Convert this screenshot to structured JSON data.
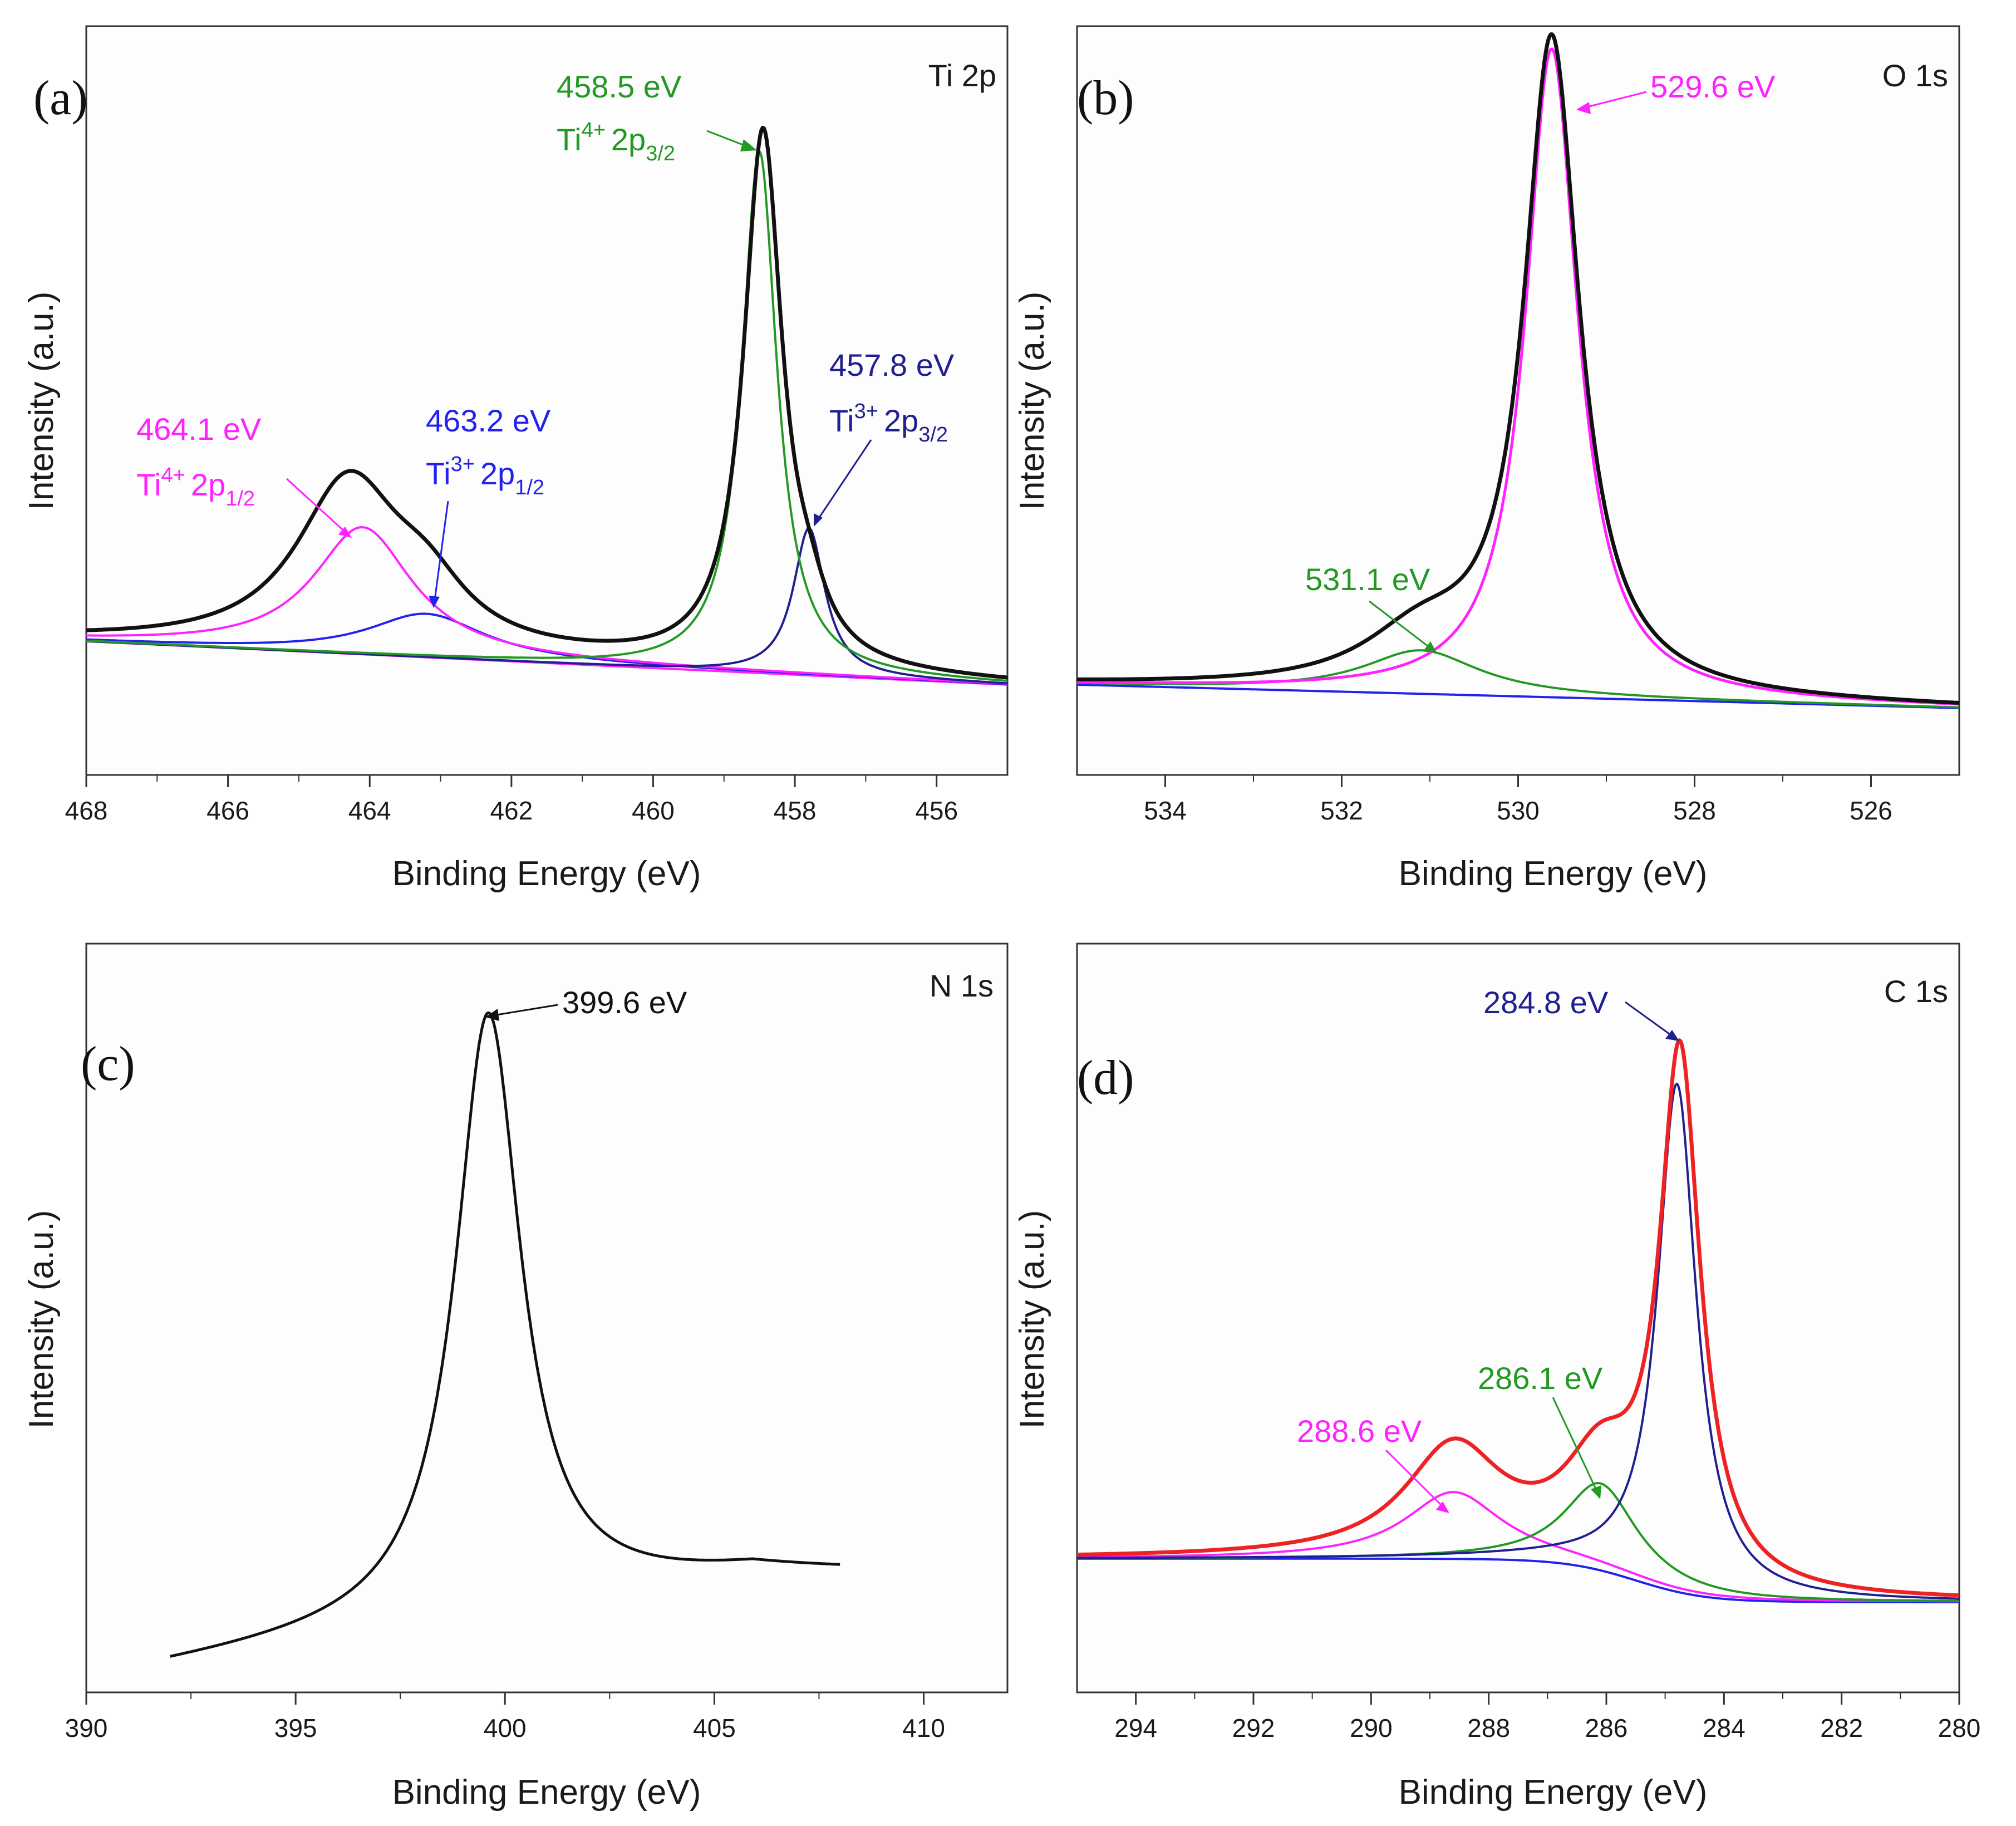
{
  "figure": {
    "colors": {
      "black": "#111111",
      "magenta": "#ff22ff",
      "green": "#229922",
      "blue": "#2222ee",
      "navy": "#1f1f8f",
      "red": "#ee2222"
    }
  },
  "chart_data": [
    {
      "type": "line",
      "panel": "(a)",
      "element_label": "Ti 2p",
      "xlabel": "Binding Energy (eV)",
      "ylabel": "Intensity (a.u.)",
      "xlim": [
        468,
        455
      ],
      "ylim": [
        0,
        1.12
      ],
      "x_ticks": [
        "468",
        "466",
        "464",
        "462",
        "460",
        "458",
        "456"
      ],
      "x_tick_values": [
        468,
        466,
        464,
        462,
        460,
        458,
        456
      ],
      "background": {
        "start": 0.2,
        "end": 0.135
      },
      "series": [
        {
          "name": "envelope",
          "color": "black",
          "stroke": 7,
          "peaks": [
            [
              458.45,
              0.8,
              0.33
            ],
            [
              464.3,
              0.25,
              0.9
            ],
            [
              463.2,
              0.07,
              0.7
            ],
            [
              457.8,
              0.05,
              0.3
            ]
          ]
        },
        {
          "name": "Ti4+ 2p3/2",
          "color": "green",
          "stroke": 4,
          "peaks": [
            [
              458.5,
              0.78,
              0.3
            ]
          ]
        },
        {
          "name": "Ti3+ 2p3/2",
          "color": "navy",
          "stroke": 4,
          "peaks": [
            [
              457.8,
              0.22,
              0.27
            ]
          ]
        },
        {
          "name": "Ti4+ 2p1/2",
          "color": "magenta",
          "stroke": 4,
          "peaks": [
            [
              464.1,
              0.19,
              0.85
            ]
          ]
        },
        {
          "name": "Ti3+ 2p1/2",
          "color": "blue",
          "stroke": 4,
          "peaks": [
            [
              463.2,
              0.065,
              1.0
            ]
          ]
        },
        {
          "name": "background",
          "color": "magenta",
          "stroke": 4,
          "peaks": []
        }
      ],
      "annotations": [
        {
          "value": "458.5 eV",
          "ion": "Ti",
          "charge": "4+",
          "orbital": "2p",
          "sub": "3/2",
          "color": "green"
        },
        {
          "value": "457.8 eV",
          "ion": "Ti",
          "charge": "3+",
          "orbital": "2p",
          "sub": "3/2",
          "color": "navy"
        },
        {
          "value": "464.1 eV",
          "ion": "Ti",
          "charge": "4+",
          "orbital": "2p",
          "sub": "1/2",
          "color": "magenta"
        },
        {
          "value": "463.2 eV",
          "ion": "Ti",
          "charge": "3+",
          "orbital": "2p",
          "sub": "1/2",
          "color": "blue"
        }
      ]
    },
    {
      "type": "line",
      "panel": "(b)",
      "element_label": "O 1s",
      "xlabel": "Binding Energy (eV)",
      "ylabel": "Intensity (a.u.)",
      "xlim": [
        535,
        525
      ],
      "ylim": [
        0,
        1.12
      ],
      "x_ticks": [
        "534",
        "532",
        "530",
        "528",
        "526"
      ],
      "x_tick_values": [
        534,
        532,
        530,
        528,
        526
      ],
      "background": {
        "start": 0.135,
        "end": 0.1
      },
      "series": [
        {
          "name": "envelope",
          "color": "black",
          "stroke": 7,
          "peaks": [
            [
              529.62,
              0.975,
              0.38
            ],
            [
              531.1,
              0.075,
              0.8
            ]
          ]
        },
        {
          "name": "529.6 eV component",
          "color": "magenta",
          "stroke": 5,
          "peaks": [
            [
              529.62,
              0.97,
              0.36
            ]
          ]
        },
        {
          "name": "531.1 eV component",
          "color": "green",
          "stroke": 4,
          "peaks": [
            [
              531.1,
              0.065,
              0.8
            ]
          ]
        },
        {
          "name": "background",
          "color": "blue",
          "stroke": 4,
          "peaks": []
        }
      ],
      "annotations": [
        {
          "value": "529.6 eV",
          "color": "magenta"
        },
        {
          "value": "531.1 eV",
          "color": "green"
        }
      ]
    },
    {
      "type": "line",
      "panel": "(c)",
      "element_label": "N 1s",
      "xlabel": "Binding Energy (eV)",
      "ylabel": "Intensity (a.u.)",
      "xlim": [
        390,
        412
      ],
      "ylim": [
        0,
        1.12
      ],
      "x_ticks": [
        "390",
        "395",
        "400",
        "405",
        "410"
      ],
      "x_tick_values": [
        390,
        395,
        400,
        405,
        410
      ],
      "x_range": [
        392,
        408
      ],
      "series": [
        {
          "name": "N 1s",
          "color": "black",
          "stroke": 5,
          "peaks": [
            [
              399.6,
              0.9,
              0.95
            ]
          ],
          "baseline": {
            "start": 0.04,
            "end": 0.18
          }
        }
      ],
      "annotations": [
        {
          "value": "399.6 eV",
          "color": "black"
        }
      ]
    },
    {
      "type": "line",
      "panel": "(d)",
      "element_label": "C 1s",
      "xlabel": "Binding Energy (eV)",
      "ylabel": "Intensity (a.u.)",
      "xlim": [
        295,
        280
      ],
      "ylim": [
        0,
        1.12
      ],
      "x_ticks": [
        "294",
        "292",
        "290",
        "288",
        "286",
        "284",
        "282",
        "280"
      ],
      "x_tick_values": [
        294,
        292,
        290,
        288,
        286,
        284,
        282,
        280
      ],
      "background": {
        "start": 0.2,
        "end": 0.135,
        "step_center": 285.5,
        "step_width": 0.6
      },
      "series": [
        {
          "name": "envelope",
          "color": "red",
          "stroke": 7,
          "peaks": [
            [
              284.75,
              0.785,
              0.42
            ],
            [
              286.1,
              0.13,
              0.75
            ],
            [
              288.6,
              0.16,
              1.0
            ]
          ]
        },
        {
          "name": "284.8 eV component",
          "color": "navy",
          "stroke": 4,
          "peaks": [
            [
              284.8,
              0.76,
              0.4
            ]
          ]
        },
        {
          "name": "286.1 eV component",
          "color": "green",
          "stroke": 4,
          "peaks": [
            [
              286.1,
              0.13,
              0.75
            ]
          ]
        },
        {
          "name": "288.6 eV component",
          "color": "magenta",
          "stroke": 4,
          "peaks": [
            [
              288.6,
              0.1,
              1.0
            ]
          ]
        },
        {
          "name": "background",
          "color": "blue",
          "stroke": 4,
          "peaks": []
        }
      ],
      "annotations": [
        {
          "value": "284.8 eV",
          "color": "navy"
        },
        {
          "value": "286.1 eV",
          "color": "green"
        },
        {
          "value": "288.6 eV",
          "color": "magenta"
        }
      ]
    }
  ]
}
